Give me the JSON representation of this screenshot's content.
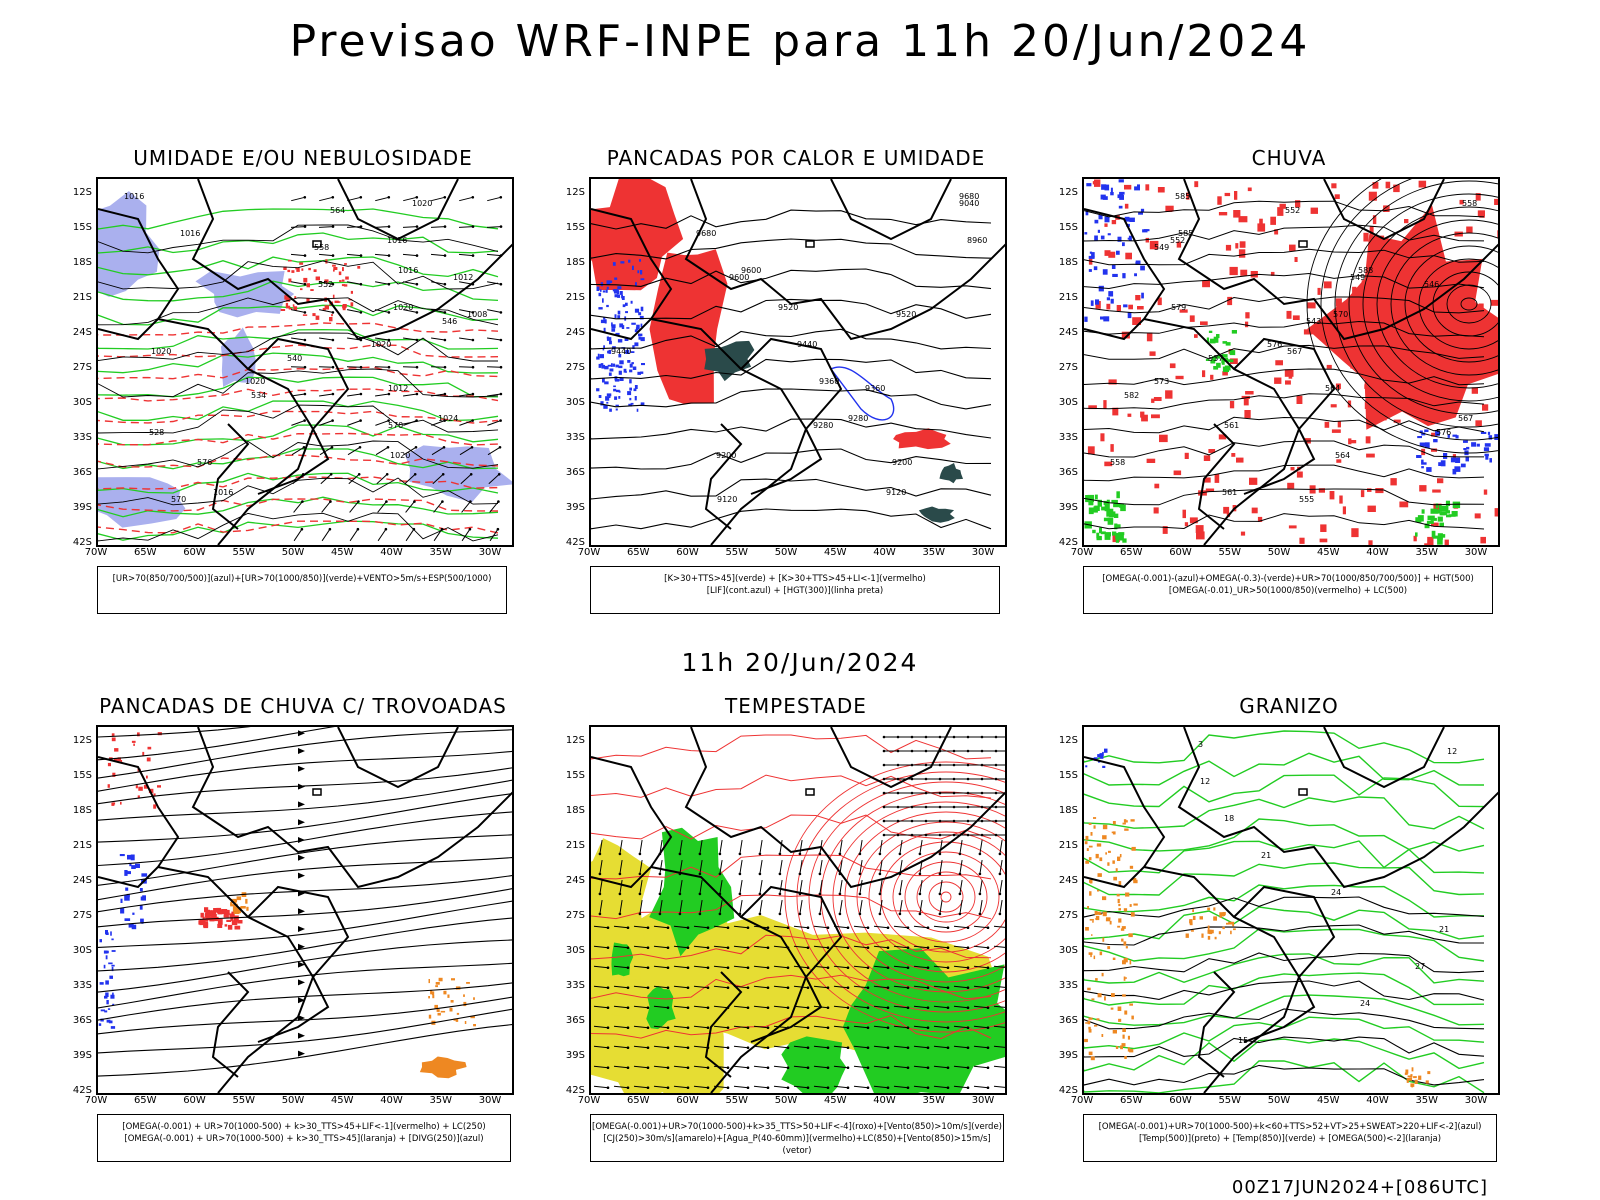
{
  "header": {
    "title": "Previsao WRF-INPE  para 11h 20/Jun/2024"
  },
  "middle_label": "11h 20/Jun/2024",
  "footer_stamp": "00Z17JUN2024+[086UTC]",
  "axes": {
    "lat_ticks": [
      "12S",
      "15S",
      "18S",
      "21S",
      "24S",
      "27S",
      "30S",
      "33S",
      "36S",
      "39S",
      "42S"
    ],
    "lon_ticks": [
      "70W",
      "65W",
      "60W",
      "55W",
      "50W",
      "45W",
      "40W",
      "35W",
      "30W"
    ]
  },
  "colors": {
    "green": "#22cc22",
    "red": "#ee3333",
    "blue": "#2233ee",
    "lavender": "#aab0ee",
    "yellow": "#e6dd33",
    "orange": "#ee8822",
    "dark": "#2a4a4a"
  },
  "panels": [
    {
      "title": "UMIDADE E/OU NEBULOSIDADE",
      "legend": [
        "[UR>70(850/700/500)](azul)+[UR>70(1000/850)](verde)+VENTO>5m/s+ESP(500/1000)"
      ],
      "contour_labels": [
        "1016",
        "1016",
        "1016",
        "1020",
        "1020",
        "1020",
        "1024",
        "1020",
        "1016",
        "1020",
        "1016",
        "1012",
        "1008",
        "1020",
        "1012",
        "570",
        "576",
        "570",
        "564",
        "558",
        "552",
        "546",
        "540",
        "534",
        "528"
      ]
    },
    {
      "title": "PANCADAS POR CALOR E UMIDADE",
      "legend": [
        "[K>30+TTS>45](verde) + [K>30+TTS>45+LI<-1](vermelho)",
        "[LIF](cont.azul) + [HGT(300)](linha preta)"
      ],
      "contour_labels": [
        "9680",
        "9680",
        "9600",
        "9520",
        "9440",
        "9360",
        "9280",
        "9200",
        "9120",
        "9040",
        "8960",
        "9600",
        "9520",
        "9440",
        "9360",
        "9280",
        "9200",
        "9120"
      ]
    },
    {
      "title": "CHUVA",
      "legend": [
        "[OMEGA(-0.001)-(azul)+OMEGA(-0.3)-(verde)+UR>70(1000/850/700/500)] + HGT(500)",
        "[OMEGA(-0.01)_UR>50(1000/850)(vermelho) + LC(500)"
      ],
      "contour_labels": [
        "585",
        "585",
        "588",
        "579",
        "576",
        "573",
        "567",
        "564",
        "561",
        "558",
        "552",
        "549",
        "570",
        "567",
        "564",
        "561",
        "558",
        "555",
        "552",
        "549",
        "546",
        "543",
        "537",
        "582",
        "576"
      ]
    },
    {
      "title": "PANCADAS DE CHUVA C/ TROVOADAS",
      "legend": [
        "[OMEGA(-0.001) + UR>70(1000-500) + k>30_TTS>45+LIF<-1](vermelho) + LC(250)",
        "[OMEGA(-0.001) + UR>70(1000-500) + k>30_TTS>45](laranja) + [DIVG(250)](azul)"
      ],
      "contour_labels": []
    },
    {
      "title": "TEMPESTADE",
      "legend": [
        "[OMEGA(-0.001)+UR>70(1000-500)+k>35_TTS>50+LIF<-4](roxo)+[Vento(850)>10m/s](verde)",
        "[CJ(250)>30m/s](amarelo)+[Agua_P(40-60mm)](vermelho)+LC(850)+[Vento(850)>15m/s](vetor)"
      ],
      "contour_labels": []
    },
    {
      "title": "GRANIZO",
      "legend": [
        "[OMEGA(-0.001)+UR>70(1000-500)+k<60+TTS>52+VT>25+SWEAT>220+LIF<-2](azul)",
        "[Temp(500)](preto) + [Temp(850)](verde) + [OMEGA(500)<-2](laranja)"
      ],
      "contour_labels": [
        "3",
        "12",
        "18",
        "21",
        "24",
        "21",
        "27",
        "24",
        "15",
        "12"
      ]
    }
  ]
}
